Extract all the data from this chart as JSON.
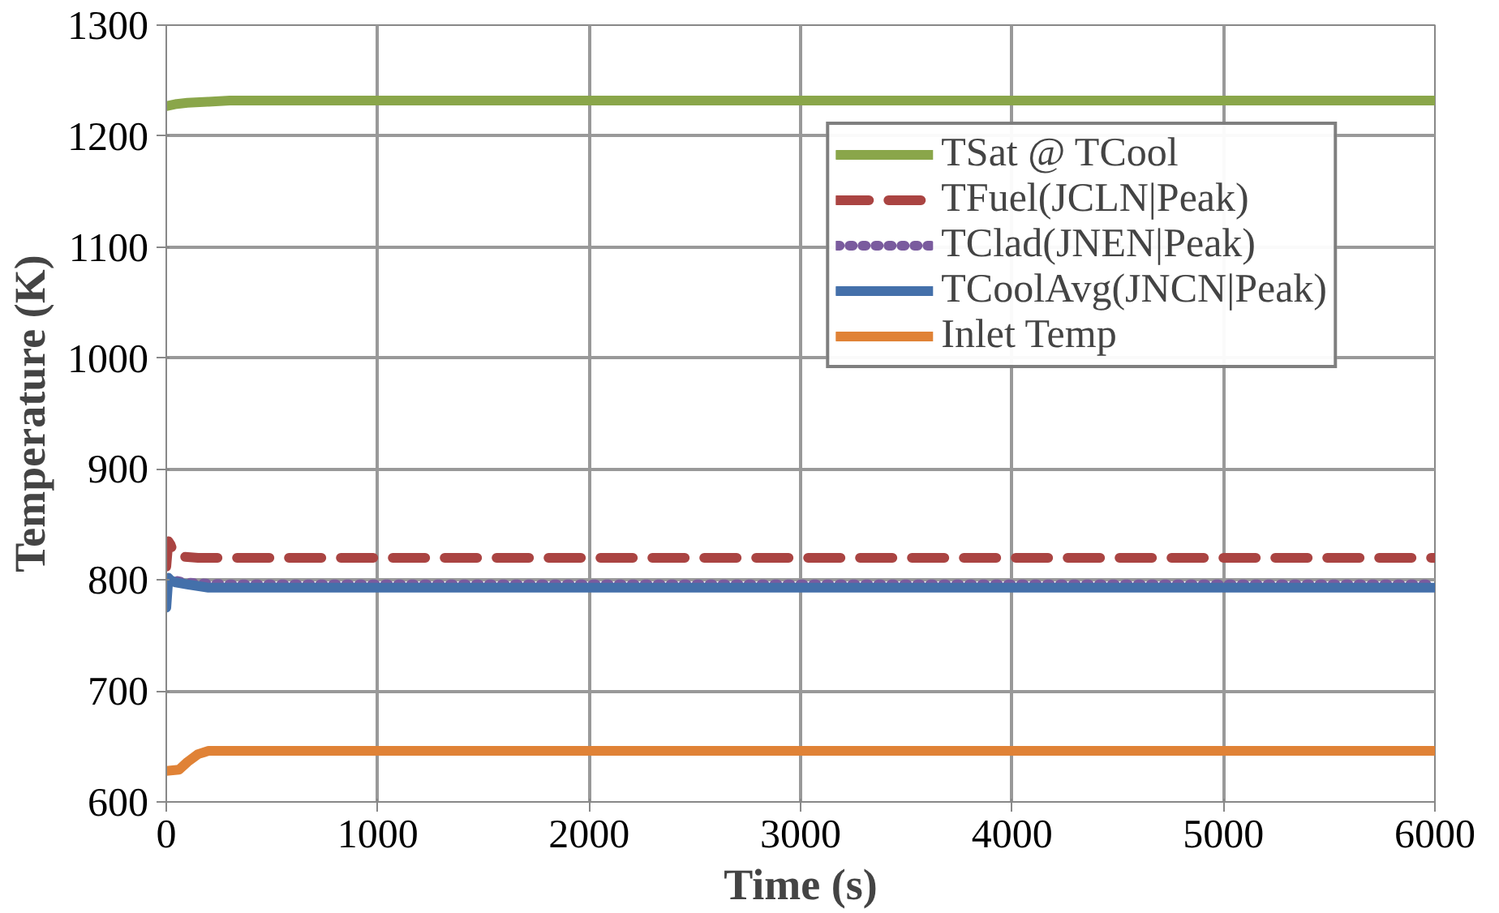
{
  "chart_data": {
    "type": "line",
    "xlabel": "Time (s)",
    "ylabel": "Temperature (K)",
    "xlim": [
      0,
      6000
    ],
    "xticks": [
      0,
      1000,
      2000,
      3000,
      4000,
      5000,
      6000
    ],
    "ylim": [
      600,
      1300
    ],
    "yticks": [
      600,
      700,
      800,
      900,
      1000,
      1100,
      1200,
      1300
    ],
    "grid": true,
    "legend": "top right",
    "series": [
      {
        "name": "TSat @ TCool",
        "color": "#8aa64a",
        "line_style": "solid",
        "x": [
          0,
          50,
          100,
          200,
          300,
          500,
          1000,
          3000,
          6000
        ],
        "values": [
          1227,
          1229,
          1230,
          1231,
          1232,
          1232,
          1232,
          1232,
          1232
        ]
      },
      {
        "name": "TFuel(JCLN|Peak)",
        "color": "#aa4442",
        "line_style": "dashed",
        "x": [
          0,
          10,
          20,
          40,
          80,
          150,
          300,
          1000,
          3000,
          6000
        ],
        "values": [
          812,
          835,
          832,
          822,
          821,
          820,
          820,
          820,
          820,
          820
        ]
      },
      {
        "name": "TClad(JNEN|Peak)",
        "color": "#7a5b9e",
        "line_style": "dotted",
        "x": [
          0,
          10,
          30,
          80,
          150,
          300,
          1000,
          3000,
          6000
        ],
        "values": [
          785,
          800,
          800,
          798,
          797,
          796,
          796,
          796,
          796
        ]
      },
      {
        "name": "TCoolAvg(JNCN|Peak)",
        "color": "#4470aa",
        "line_style": "solid",
        "x": [
          0,
          10,
          20,
          40,
          100,
          200,
          300,
          1000,
          3000,
          6000
        ],
        "values": [
          775,
          802,
          800,
          798,
          796,
          793,
          793,
          793,
          793,
          793
        ]
      },
      {
        "name": "Inlet Temp",
        "color": "#e08236",
        "line_style": "solid",
        "x": [
          0,
          60,
          100,
          150,
          200,
          300,
          1000,
          3000,
          6000
        ],
        "values": [
          628,
          629,
          636,
          643,
          646,
          646,
          646,
          646,
          646
        ]
      }
    ]
  }
}
